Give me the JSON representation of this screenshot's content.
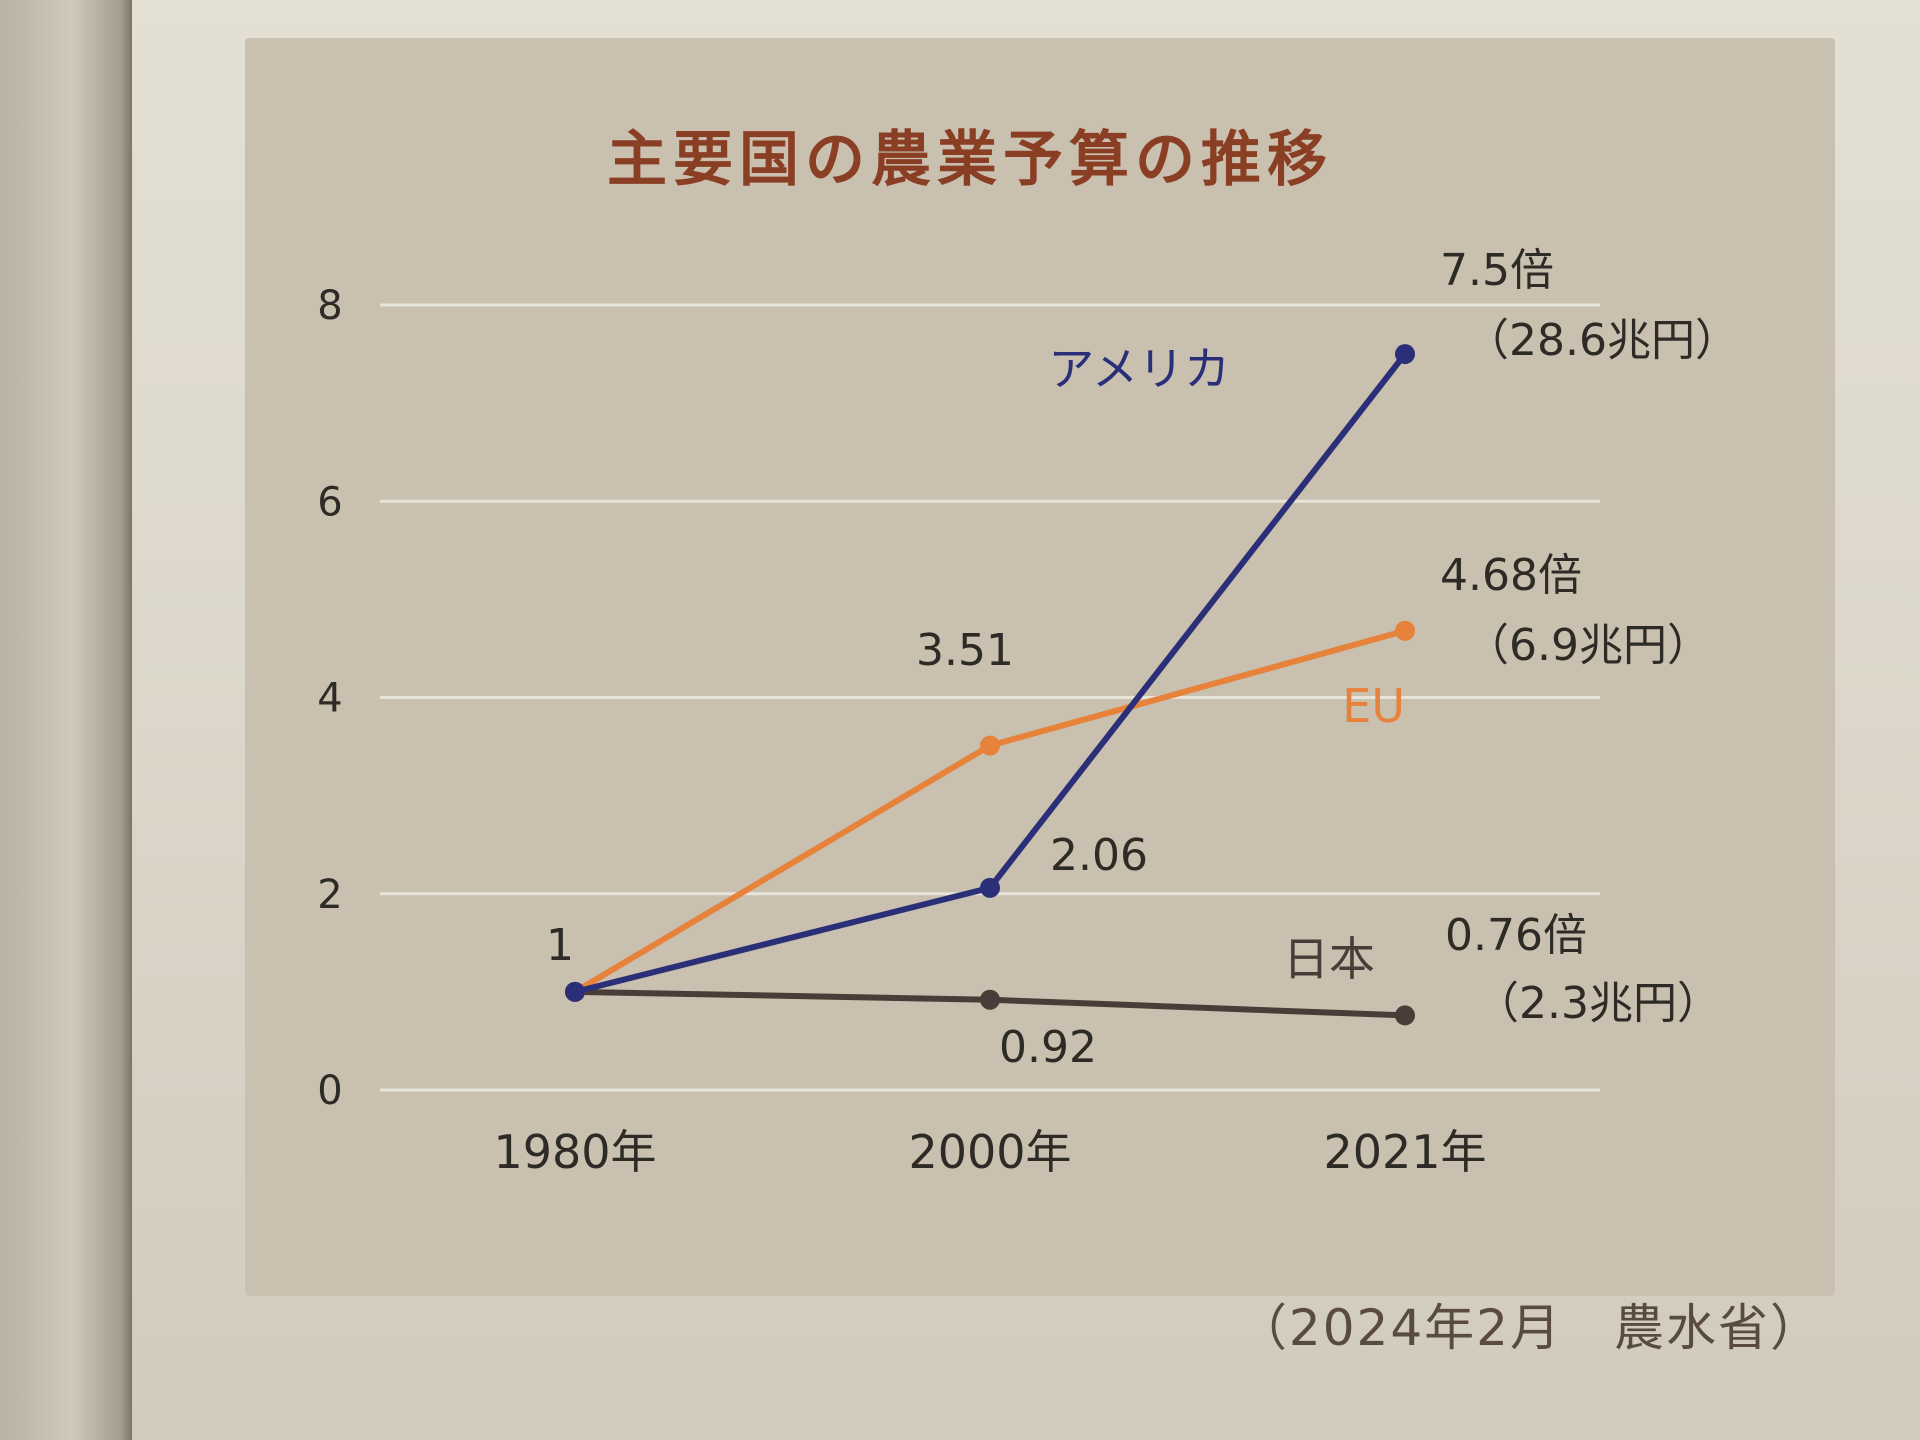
{
  "chart_data": {
    "type": "line",
    "title": "主要国の農業予算の推移",
    "categories": [
      "1980年",
      "2000年",
      "2021年"
    ],
    "y_ticks": [
      "0",
      "2",
      "4",
      "6",
      "8"
    ],
    "ylim": [
      0,
      8
    ],
    "grid": true,
    "series": [
      {
        "name": "アメリカ",
        "color": "#2b2f78",
        "values": [
          1,
          2.06,
          7.5
        ],
        "point_labels": [
          "",
          "2.06",
          "7.5倍"
        ],
        "end_note": "（28.6兆円）"
      },
      {
        "name": "EU",
        "color": "#e6823a",
        "values": [
          1,
          3.51,
          4.68
        ],
        "point_labels": [
          "1",
          "3.51",
          "4.68倍"
        ],
        "end_note": "（6.9兆円）"
      },
      {
        "name": "日本",
        "color": "#4a3c38",
        "values": [
          1,
          0.92,
          0.76
        ],
        "point_labels": [
          "",
          "0.92",
          "0.76倍"
        ],
        "end_note": "（2.3兆円）"
      }
    ]
  },
  "source": "（2024年2月　農水省）",
  "colors": {
    "title": "#8a3f24",
    "grid": "#e8e4da",
    "tick_text": "#2e2a26"
  }
}
